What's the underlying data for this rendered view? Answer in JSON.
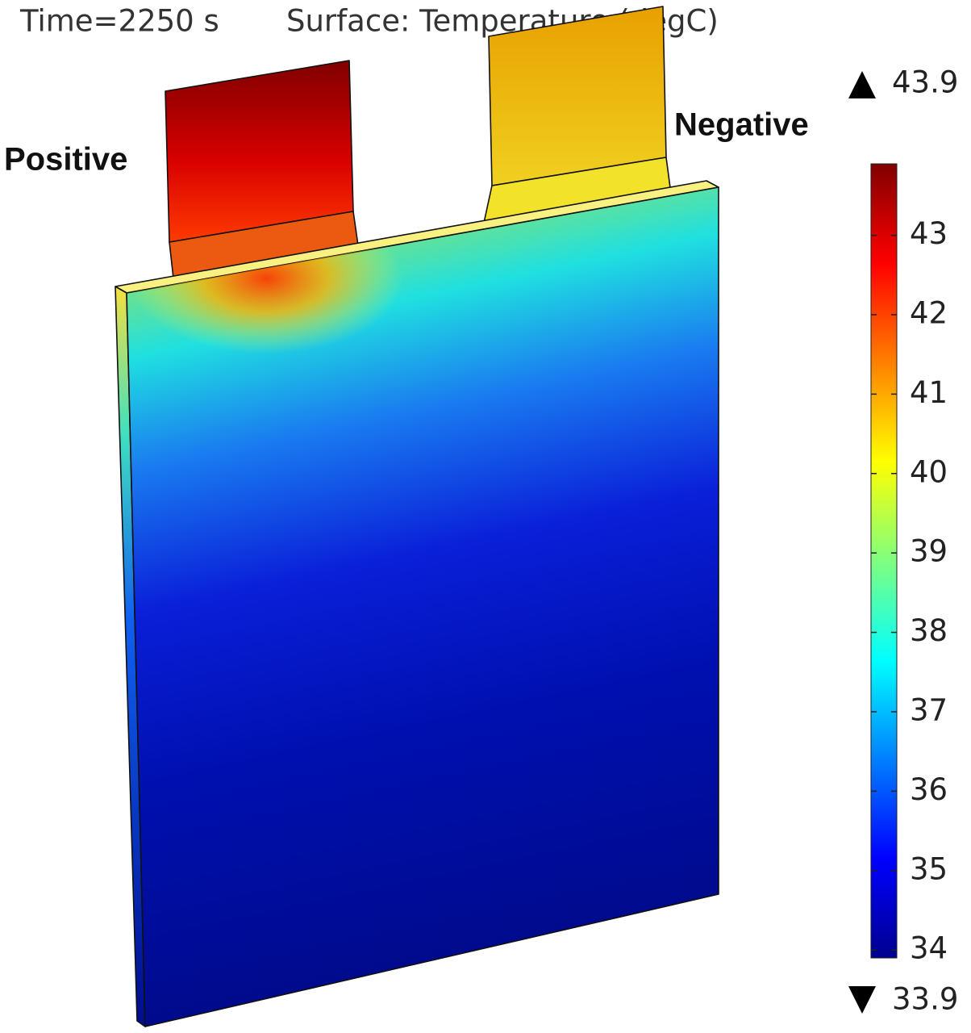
{
  "title": {
    "time": "Time=2250 s",
    "quantity": "Surface: Temperature (degC)"
  },
  "labels": {
    "positive": "Positive",
    "negative": "Negative"
  },
  "colorbar": {
    "max": 43.9,
    "min": 33.9,
    "ticks": [
      34,
      35,
      36,
      37,
      38,
      39,
      40,
      41,
      42,
      43
    ]
  }
}
